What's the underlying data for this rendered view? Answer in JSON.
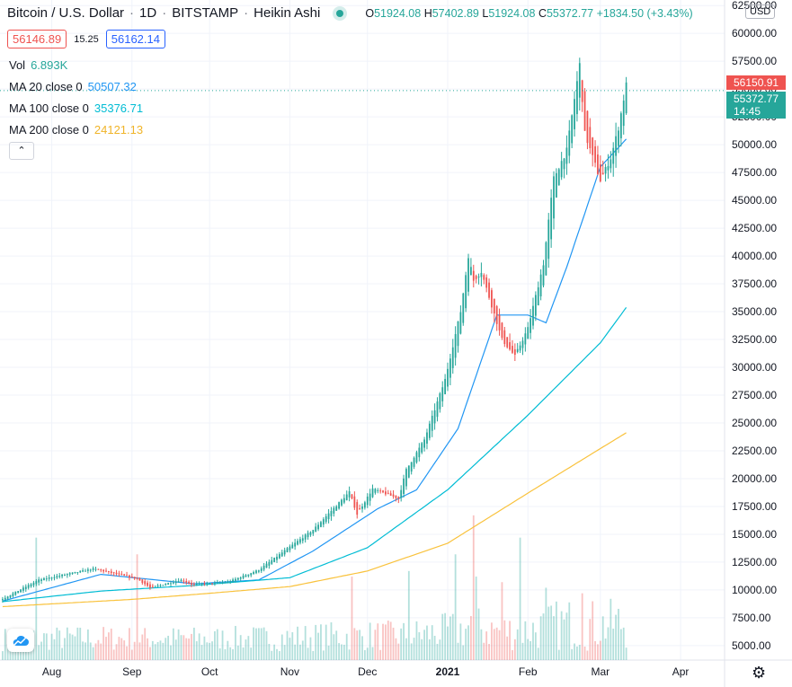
{
  "header": {
    "symbol": "Bitcoin / U.S. Dollar",
    "interval": "1D",
    "exchange": "BITSTAMP",
    "chart_style": "Heikin Ashi",
    "o_label": "O",
    "o_value": "51924.08",
    "h_label": "H",
    "h_value": "57402.89",
    "l_label": "L",
    "l_value": "51924.08",
    "c_label": "C",
    "c_value": "55372.77",
    "change": "+1834.50 (+3.43%)"
  },
  "trade": {
    "sell_price": "56146.89",
    "spread": "15.25",
    "buy_price": "56162.14"
  },
  "indicators": {
    "vol_label": "Vol",
    "vol_value": "6.893K",
    "ma20_label": "MA 20 close 0",
    "ma20_value": "50507.32",
    "ma100_label": "MA 100 close 0",
    "ma100_value": "35376.71",
    "ma200_label": "MA 200 close 0",
    "ma200_value": "24121.13"
  },
  "axis": {
    "currency": "USD",
    "last_price_tag": "56150.91",
    "close_price_tag": "55372.77",
    "countdown": "14:45",
    "settings_icon": "gear-icon",
    "logo_icon": "tradingview-cloud-icon"
  },
  "colors": {
    "up": "#26a69a",
    "down": "#ef5350",
    "ma20": "#2196f3",
    "ma100": "#00bcd4",
    "ma200": "#f9c23c",
    "grid": "#f0f3fa",
    "last_price_tag": "#ef5350",
    "close_tag": "#26a69a"
  },
  "chart_data": {
    "type": "candlestick",
    "style": "Heikin Ashi",
    "x_range": [
      "2020-07-12",
      "2021-04-18"
    ],
    "ylim": [
      3700,
      63000
    ],
    "yticks": [
      "5000.00",
      "7500.00",
      "10000.00",
      "12500.00",
      "15000.00",
      "17500.00",
      "20000.00",
      "22500.00",
      "25000.00",
      "27500.00",
      "30000.00",
      "32500.00",
      "35000.00",
      "37500.00",
      "40000.00",
      "42500.00",
      "45000.00",
      "47500.00",
      "50000.00",
      "52500.00",
      "55000.00",
      "57500.00",
      "60000.00",
      "62500.00"
    ],
    "xticks": [
      {
        "label": "Aug",
        "date": "2020-08-01"
      },
      {
        "label": "Sep",
        "date": "2020-09-01"
      },
      {
        "label": "Oct",
        "date": "2020-10-01"
      },
      {
        "label": "Nov",
        "date": "2020-11-01"
      },
      {
        "label": "Dec",
        "date": "2020-12-01"
      },
      {
        "label": "2021",
        "date": "2021-01-01"
      },
      {
        "label": "Feb",
        "date": "2021-02-01"
      },
      {
        "label": "Mar",
        "date": "2021-03-01"
      },
      {
        "label": "Apr",
        "date": "2021-04-01"
      }
    ],
    "series_start": "2020-07-13",
    "series_end": "2021-03-11",
    "close_anchors": [
      [
        "2020-07-13",
        9200
      ],
      [
        "2020-07-27",
        10900
      ],
      [
        "2020-08-17",
        11900
      ],
      [
        "2020-09-03",
        11000
      ],
      [
        "2020-09-08",
        10200
      ],
      [
        "2020-09-20",
        10900
      ],
      [
        "2020-09-24",
        10500
      ],
      [
        "2020-10-08",
        10700
      ],
      [
        "2020-10-20",
        11800
      ],
      [
        "2020-10-31",
        13700
      ],
      [
        "2020-11-10",
        15400
      ],
      [
        "2020-11-24",
        18800
      ],
      [
        "2020-11-27",
        16800
      ],
      [
        "2020-12-03",
        19100
      ],
      [
        "2020-12-13",
        18200
      ],
      [
        "2020-12-16",
        20800
      ],
      [
        "2020-12-23",
        23500
      ],
      [
        "2020-12-31",
        28900
      ],
      [
        "2021-01-06",
        35000
      ],
      [
        "2021-01-09",
        40000
      ],
      [
        "2021-01-11",
        37800
      ],
      [
        "2021-01-14",
        38600
      ],
      [
        "2021-01-22",
        32500
      ],
      [
        "2021-01-27",
        31000
      ],
      [
        "2021-02-01",
        33500
      ],
      [
        "2021-02-07",
        39300
      ],
      [
        "2021-02-11",
        47000
      ],
      [
        "2021-02-16",
        49500
      ],
      [
        "2021-02-21",
        57200
      ],
      [
        "2021-02-23",
        51000
      ],
      [
        "2021-03-01",
        46800
      ],
      [
        "2021-03-05",
        48800
      ],
      [
        "2021-03-08",
        51500
      ],
      [
        "2021-03-11",
        55400
      ]
    ],
    "ma_anchors": {
      "ma20": [
        [
          "2020-07-13",
          9000
        ],
        [
          "2020-08-20",
          11400
        ],
        [
          "2020-09-25",
          10550
        ],
        [
          "2020-10-20",
          10900
        ],
        [
          "2020-11-10",
          13500
        ],
        [
          "2020-12-05",
          17300
        ],
        [
          "2020-12-20",
          19000
        ],
        [
          "2021-01-05",
          24500
        ],
        [
          "2021-01-20",
          34700
        ],
        [
          "2021-02-01",
          34700
        ],
        [
          "2021-02-08",
          34000
        ],
        [
          "2021-02-16",
          39000
        ],
        [
          "2021-03-01",
          48000
        ],
        [
          "2021-03-11",
          50507
        ]
      ],
      "ma100": [
        [
          "2020-07-13",
          8950
        ],
        [
          "2020-08-20",
          9900
        ],
        [
          "2020-09-25",
          10400
        ],
        [
          "2020-11-01",
          11100
        ],
        [
          "2020-12-01",
          13800
        ],
        [
          "2021-01-01",
          19000
        ],
        [
          "2021-02-01",
          25700
        ],
        [
          "2021-03-01",
          32200
        ],
        [
          "2021-03-11",
          35377
        ]
      ],
      "ma200": [
        [
          "2020-07-13",
          8500
        ],
        [
          "2020-09-01",
          9150
        ],
        [
          "2020-10-01",
          9700
        ],
        [
          "2020-11-01",
          10300
        ],
        [
          "2020-12-01",
          11700
        ],
        [
          "2021-01-01",
          14200
        ],
        [
          "2021-02-01",
          18700
        ],
        [
          "2021-03-01",
          22700
        ],
        [
          "2021-03-11",
          24121
        ]
      ]
    },
    "volume_spikes": [
      [
        "2020-07-26",
        11000
      ],
      [
        "2020-09-03",
        9500
      ],
      [
        "2020-11-25",
        7500
      ],
      [
        "2020-12-17",
        8000
      ],
      [
        "2021-01-04",
        9500
      ],
      [
        "2021-01-11",
        13000
      ],
      [
        "2021-01-12",
        7500
      ],
      [
        "2021-01-22",
        7000
      ],
      [
        "2021-01-29",
        11000
      ],
      [
        "2021-02-08",
        6500
      ],
      [
        "2021-02-22",
        6000
      ]
    ]
  }
}
